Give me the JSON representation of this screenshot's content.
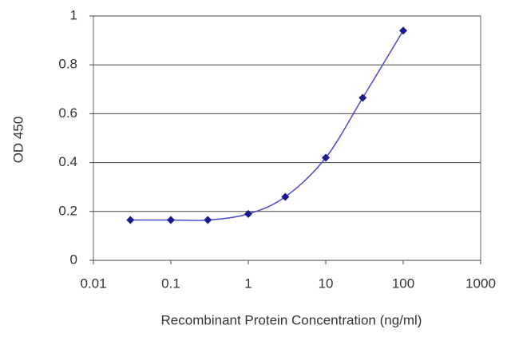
{
  "chart_data": {
    "type": "line",
    "x_label": "Recombinant Protein Concentration (ng/ml)",
    "y_label": "OD 450",
    "x": [
      0.03,
      0.1,
      0.3,
      1,
      3,
      10,
      30,
      100
    ],
    "values": [
      0.165,
      0.165,
      0.165,
      0.19,
      0.26,
      0.42,
      0.665,
      0.94
    ],
    "color": "#1a1a8c",
    "line_color": "#4a4ad0",
    "xlim": [
      0.01,
      1000
    ],
    "xticks": [
      0.01,
      0.1,
      1,
      10,
      100,
      1000
    ],
    "ylim": [
      0,
      1
    ],
    "yticks": [
      0,
      0.2,
      0.4,
      0.6,
      0.8,
      1
    ],
    "x_log": true,
    "grid": true
  }
}
